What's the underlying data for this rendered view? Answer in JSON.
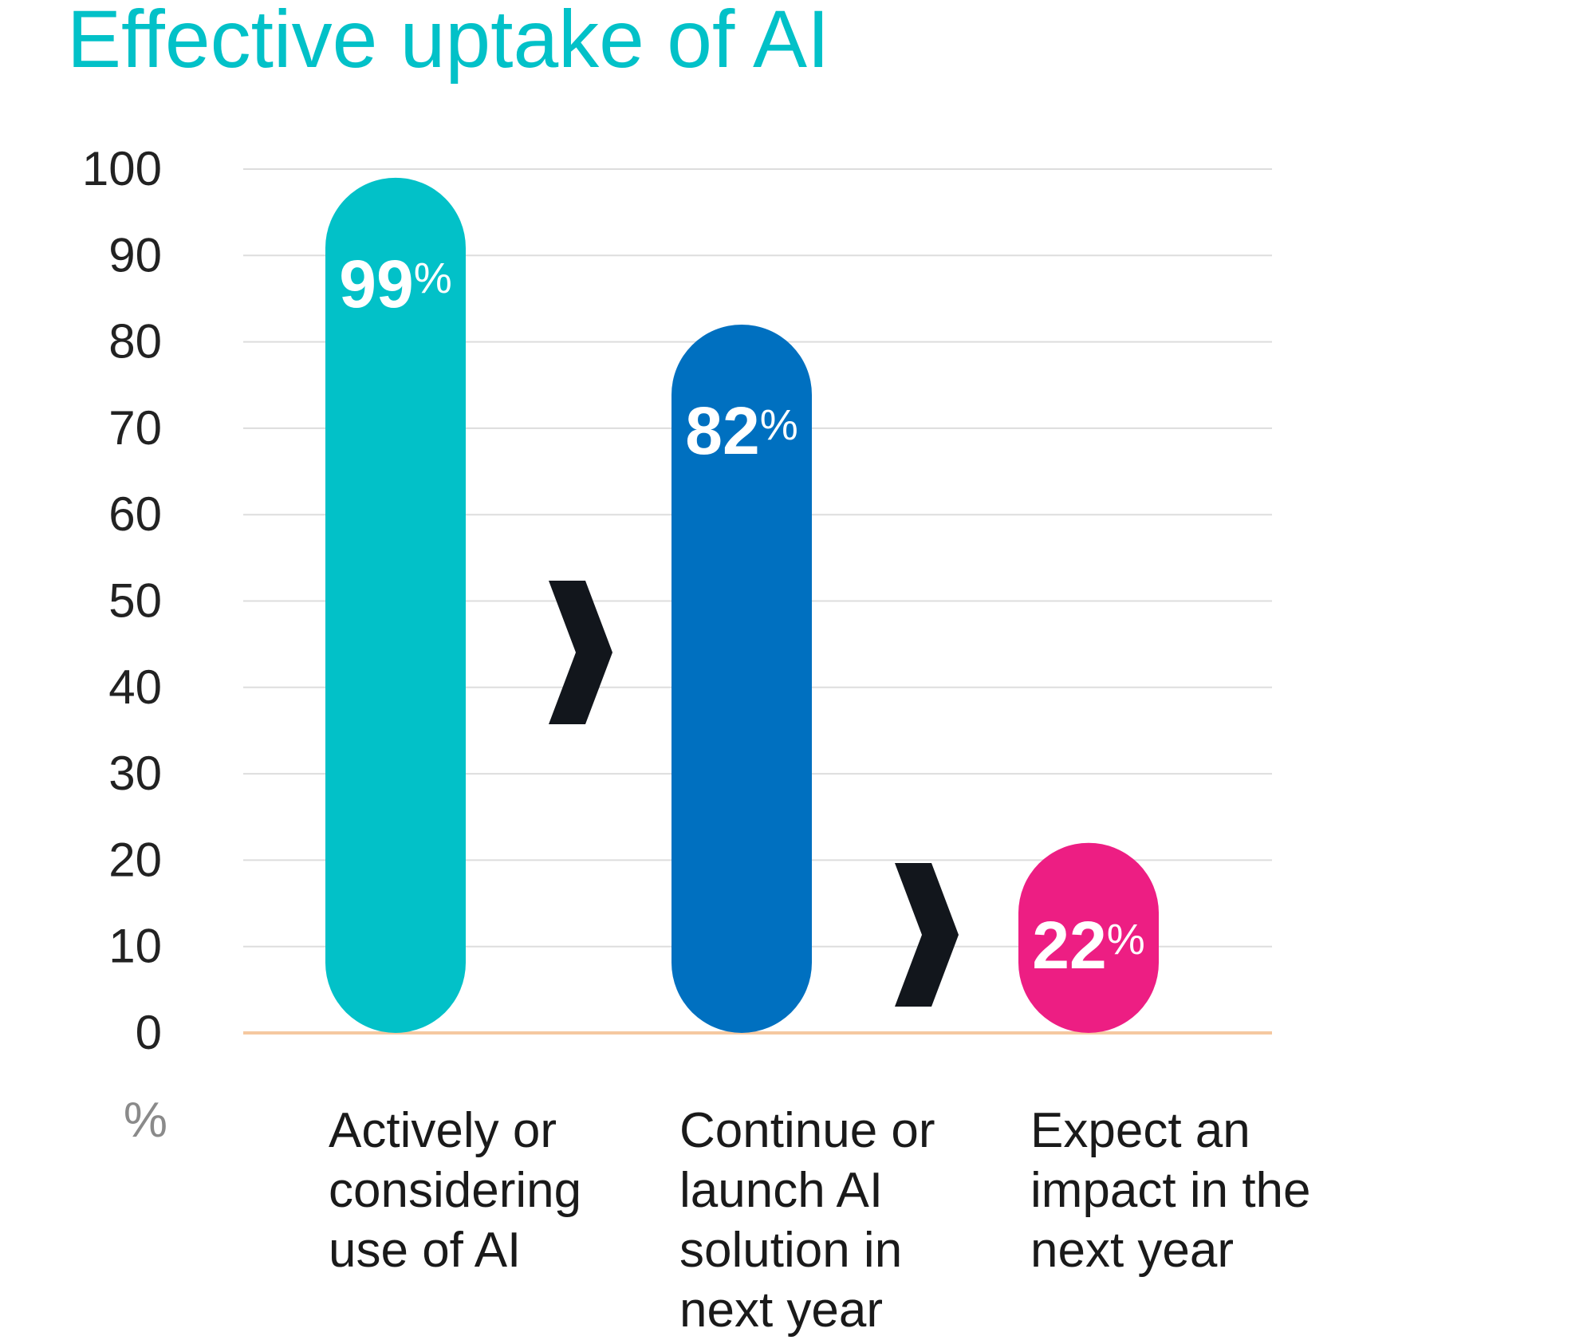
{
  "chart_data": {
    "type": "bar",
    "title": "Effective uptake of AI",
    "unit_label": "%",
    "ylim": [
      0,
      100
    ],
    "yticks": [
      "0",
      "10",
      "20",
      "30",
      "40",
      "50",
      "60",
      "70",
      "80",
      "90",
      "100"
    ],
    "grid": true,
    "categories": [
      [
        "Actively or",
        "considering",
        "use of AI"
      ],
      [
        "Continue or",
        "launch AI",
        "solution in",
        "next year"
      ],
      [
        "Expect an",
        "impact in the",
        "next year"
      ]
    ],
    "values": [
      99,
      82,
      22
    ],
    "value_labels": [
      "99",
      "82",
      "22"
    ],
    "value_suffix": "%",
    "colors": [
      "#02C1C8",
      "#0070C0",
      "#ED1E83"
    ],
    "title_color": "#02C1C8",
    "baseline_color": "#F5C8A0",
    "grid_color": "#DDDDDD",
    "chevron_color": "#12161C",
    "chevron_icon": "chevron-right-icon"
  }
}
